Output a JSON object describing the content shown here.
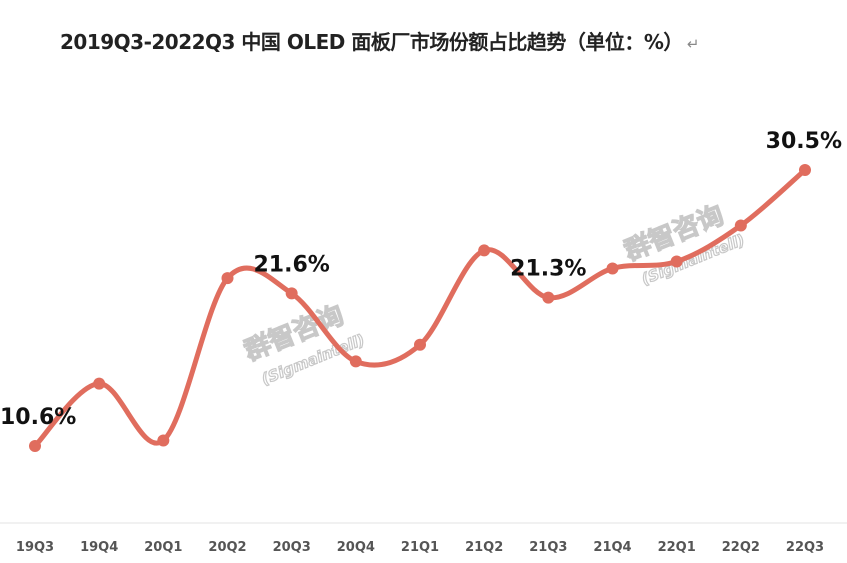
{
  "chart_data": {
    "type": "line",
    "title": "2019Q3-2022Q3 中国 OLED 面板厂市场份额占比趋势（单位：%）",
    "title_suffix": "↵",
    "categories": [
      "19Q3",
      "19Q4",
      "20Q1",
      "20Q2",
      "20Q3",
      "20Q4",
      "21Q1",
      "21Q2",
      "21Q3",
      "21Q4",
      "22Q1",
      "22Q2",
      "22Q3"
    ],
    "series": [
      {
        "name": "中国 OLED 面板厂市场份额",
        "values": [
          10.6,
          15.1,
          11.0,
          22.7,
          21.6,
          16.7,
          17.9,
          24.7,
          21.3,
          23.4,
          23.9,
          26.5,
          30.5
        ]
      }
    ],
    "data_labels": [
      {
        "category": "19Q3",
        "text": "10.6%"
      },
      {
        "category": "20Q3",
        "text": "21.6%"
      },
      {
        "category": "21Q3",
        "text": "21.3%"
      },
      {
        "category": "22Q3",
        "text": "30.5%"
      }
    ],
    "ylim": [
      0,
      35
    ],
    "xlabel": "",
    "ylabel": "",
    "grid": false,
    "legend": "none",
    "line_color": "#E06D5E",
    "watermark": {
      "name": "群智咨询",
      "sub": "(Sigmaintell)"
    }
  }
}
